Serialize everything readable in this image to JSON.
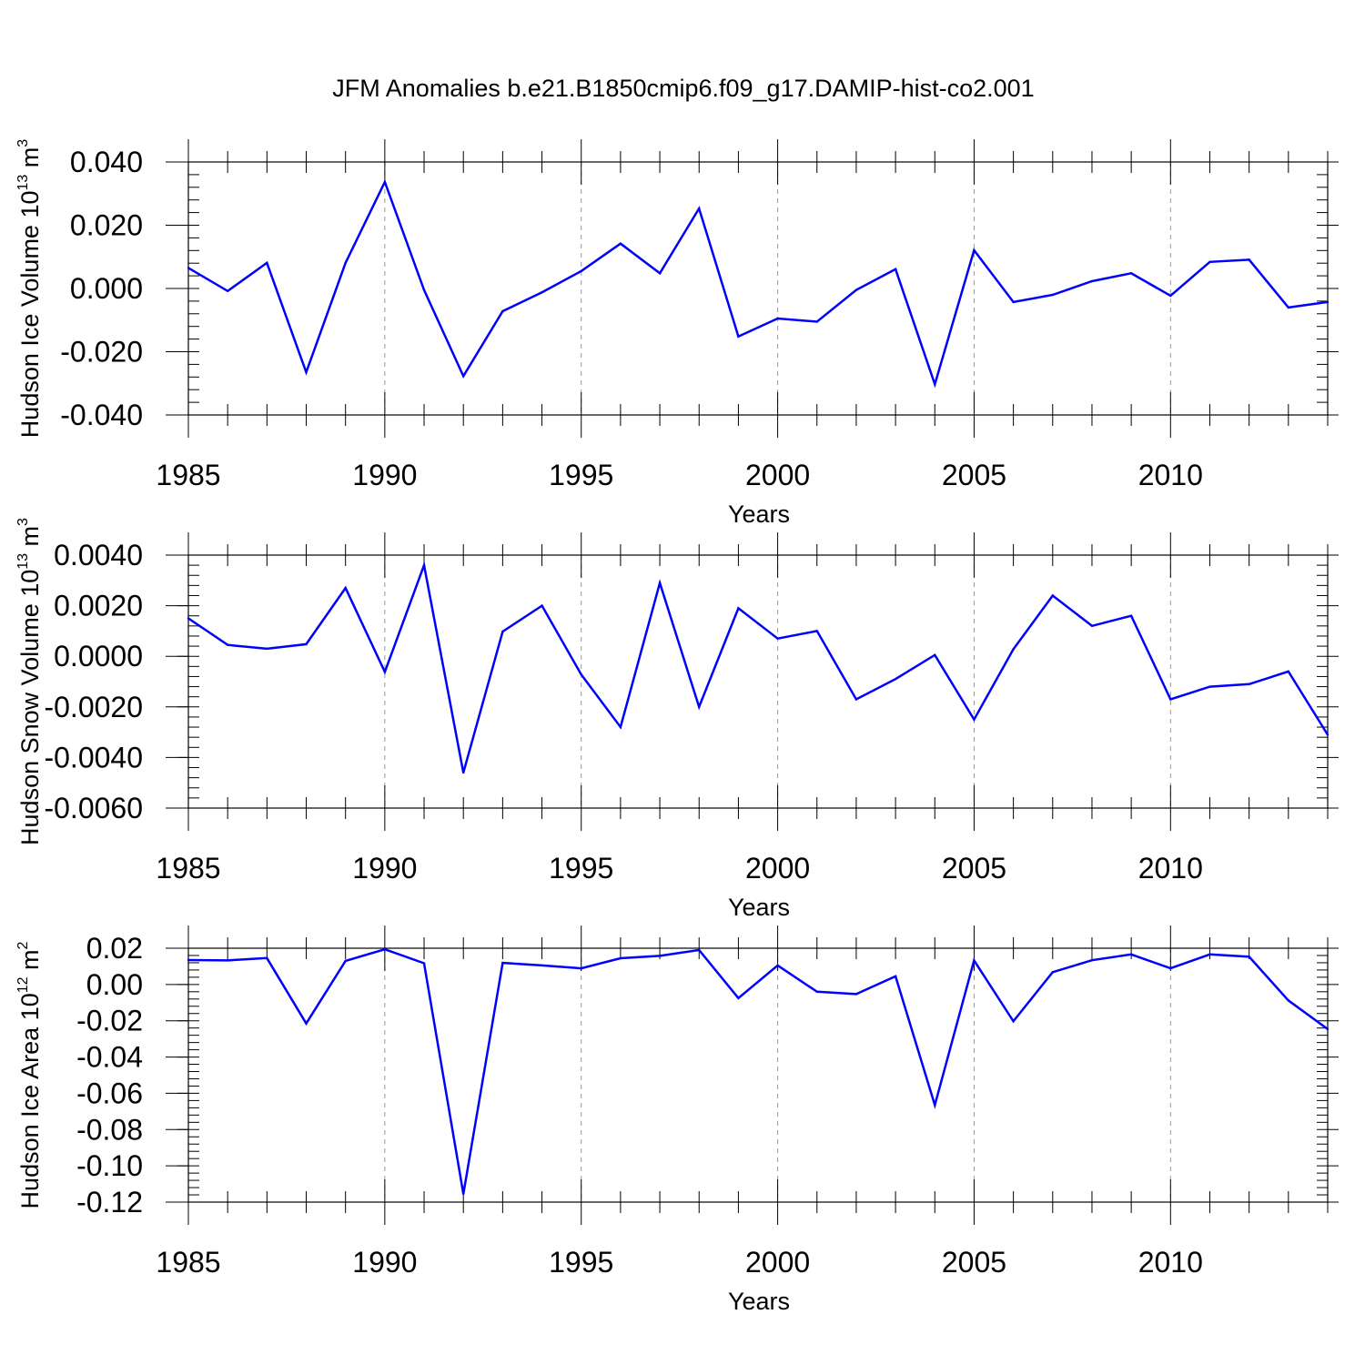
{
  "title": "JFM Anomalies b.e21.B1850cmip6.f09_g17.DAMIP-hist-co2.001",
  "colors": {
    "line": "#0000ff",
    "axis": "#000000",
    "grid": "#999999"
  },
  "chart_data": [
    {
      "type": "line",
      "ylabel": "Hudson Ice Volume 10",
      "yunit_exp": "13",
      "yunit": " m",
      "yunit_sup": "3",
      "xlabel": "Years",
      "xlim": [
        1985,
        2014
      ],
      "ylim": [
        -0.04,
        0.04
      ],
      "yticks": [
        -0.04,
        -0.02,
        0.0,
        0.02,
        0.04
      ],
      "ytick_labels": [
        "-0.040",
        "-0.020",
        "0.000",
        "0.020",
        "0.040"
      ],
      "xticks": [
        1985,
        1990,
        1995,
        2000,
        2005,
        2010
      ],
      "xtick_labels": [
        "1985",
        "1990",
        "1995",
        "2000",
        "2005",
        "2010"
      ],
      "x": [
        1985,
        1986,
        1987,
        1988,
        1989,
        1990,
        1991,
        1992,
        1993,
        1994,
        1995,
        1996,
        1997,
        1998,
        1999,
        2000,
        2001,
        2002,
        2003,
        2004,
        2005,
        2006,
        2007,
        2008,
        2009,
        2010,
        2011,
        2012,
        2013,
        2014
      ],
      "values": [
        0.0065,
        -0.0008,
        0.0081,
        -0.0265,
        0.0081,
        0.0337,
        -0.0005,
        -0.0277,
        -0.0072,
        -0.0012,
        0.0055,
        0.0142,
        0.0048,
        0.0253,
        -0.0152,
        -0.0095,
        -0.0105,
        -0.0005,
        0.0061,
        -0.0303,
        0.0121,
        -0.0043,
        -0.002,
        0.0023,
        0.0048,
        -0.0023,
        0.0084,
        0.0091,
        -0.006,
        -0.0043
      ]
    },
    {
      "type": "line",
      "ylabel": "Hudson Snow Volume 10",
      "yunit_exp": "13",
      "yunit": " m",
      "yunit_sup": "3",
      "xlabel": "Years",
      "xlim": [
        1985,
        2014
      ],
      "ylim": [
        -0.006,
        0.004
      ],
      "yticks": [
        -0.006,
        -0.004,
        -0.002,
        0.0,
        0.002,
        0.004
      ],
      "ytick_labels": [
        "-0.0060",
        "-0.0040",
        "-0.0020",
        "0.0000",
        "0.0020",
        "0.0040"
      ],
      "xticks": [
        1985,
        1990,
        1995,
        2000,
        2005,
        2010
      ],
      "xtick_labels": [
        "1985",
        "1990",
        "1995",
        "2000",
        "2005",
        "2010"
      ],
      "x": [
        1985,
        1986,
        1987,
        1988,
        1989,
        1990,
        1991,
        1992,
        1993,
        1994,
        1995,
        1996,
        1997,
        1998,
        1999,
        2000,
        2001,
        2002,
        2003,
        2004,
        2005,
        2006,
        2007,
        2008,
        2009,
        2010,
        2011,
        2012,
        2013,
        2014
      ],
      "values": [
        0.0015,
        0.00045,
        0.0003,
        0.00048,
        0.0027,
        -0.00062,
        0.0036,
        -0.0046,
        0.00098,
        0.002,
        -0.00072,
        -0.0028,
        0.0029,
        -0.002,
        0.0019,
        0.0007,
        0.001,
        -0.0017,
        -0.0009,
        5e-05,
        -0.0025,
        0.00028,
        0.0024,
        0.0012,
        0.0016,
        -0.0017,
        -0.0012,
        -0.0011,
        -0.0006,
        -0.0031
      ]
    },
    {
      "type": "line",
      "ylabel": "Hudson Ice Area 10",
      "yunit_exp": "12",
      "yunit": " m",
      "yunit_sup": "2",
      "xlabel": "Years",
      "xlim": [
        1985,
        2014
      ],
      "ylim": [
        -0.12,
        0.02
      ],
      "yticks": [
        -0.12,
        -0.1,
        -0.08,
        -0.06,
        -0.04,
        -0.02,
        0.0,
        0.02
      ],
      "ytick_labels": [
        "-0.12",
        "-0.10",
        "-0.08",
        "-0.06",
        "-0.04",
        "-0.02",
        "0.00",
        "0.02"
      ],
      "xticks": [
        1985,
        1990,
        1995,
        2000,
        2005,
        2010
      ],
      "xtick_labels": [
        "1985",
        "1990",
        "1995",
        "2000",
        "2005",
        "2010"
      ],
      "x": [
        1985,
        1986,
        1987,
        1988,
        1989,
        1990,
        1991,
        1992,
        1993,
        1994,
        1995,
        1996,
        1997,
        1998,
        1999,
        2000,
        2001,
        2002,
        2003,
        2004,
        2005,
        2006,
        2007,
        2008,
        2009,
        2010,
        2011,
        2012,
        2013,
        2014
      ],
      "values": [
        0.0135,
        0.0133,
        0.0146,
        -0.0215,
        0.013,
        0.0194,
        0.0117,
        -0.1155,
        0.0119,
        0.0105,
        0.0089,
        0.0145,
        0.0158,
        0.019,
        -0.0075,
        0.0105,
        -0.004,
        -0.0053,
        0.0045,
        -0.0665,
        0.0133,
        -0.0203,
        0.0068,
        0.0134,
        0.0166,
        0.0089,
        0.0166,
        0.0153,
        -0.0088,
        -0.0246
      ]
    }
  ]
}
